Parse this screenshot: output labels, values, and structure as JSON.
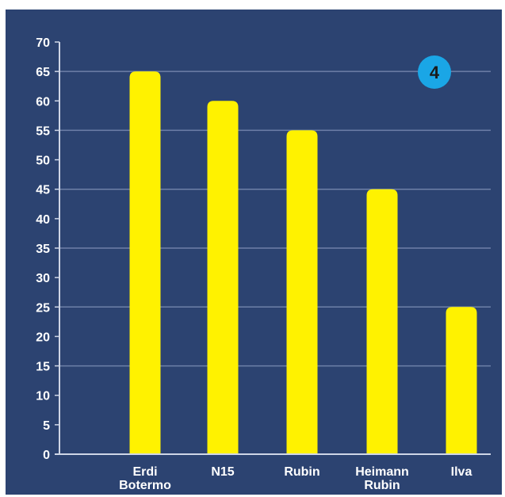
{
  "chart_data": {
    "type": "bar",
    "categories": [
      [
        "Erdi",
        "Botermo"
      ],
      [
        "N15"
      ],
      [
        "Rubin"
      ],
      [
        "Heimann",
        "Rubin"
      ],
      [
        "Ilva"
      ]
    ],
    "values": [
      65,
      60,
      55,
      45,
      25
    ],
    "ylim": [
      0,
      70
    ],
    "yticks": [
      0,
      5,
      10,
      15,
      20,
      25,
      30,
      35,
      40,
      45,
      50,
      55,
      60,
      65,
      70
    ],
    "grid": true,
    "badge": "4",
    "colors": {
      "background": "#2c4371",
      "bar": "#fff200",
      "axis": "#cfd6e6",
      "grid": "#6e80a8",
      "badge": "#1aa6e6"
    }
  }
}
